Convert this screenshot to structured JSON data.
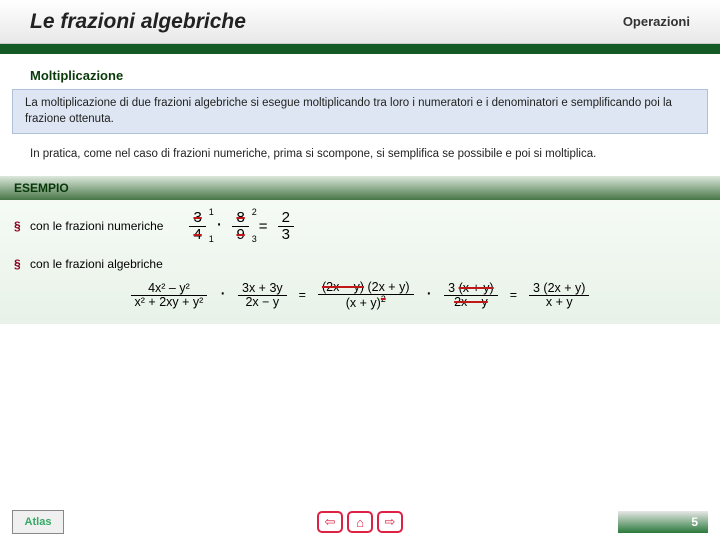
{
  "header": {
    "title": "Le frazioni algebriche",
    "subtitle": "Operazioni"
  },
  "section": {
    "heading": "Moltiplicazione"
  },
  "infobox": {
    "text": "La moltiplicazione di due frazioni algebriche si esegue moltiplicando tra loro i numeratori e i denominatori e semplificando poi la frazione ottenuta."
  },
  "para": {
    "text": "In pratica, come nel caso di frazioni numeriche, prima si scompone, si semplifica se possibile e poi si moltiplica."
  },
  "esempio": {
    "label": "ESEMPIO",
    "line1": {
      "bullet": "§",
      "text": "con le frazioni numeriche"
    },
    "numfrac": {
      "f1n": "3",
      "f1d": "4",
      "s1t": "1",
      "s1b": "1",
      "f2n": "8",
      "f2d": "9",
      "s2t": "2",
      "s2b": "3",
      "eq": "=",
      "rn": "2",
      "rd": "3",
      "dot": "·"
    },
    "line2": {
      "bullet": "§",
      "text": "con le frazioni algebriche"
    },
    "alg": {
      "a1n": "4x² – y²",
      "a1d": "x² + 2xy + y²",
      "a2n": "3x + 3y",
      "a2d": "2x − y",
      "b1n": "(2x − y) (2x + y)",
      "b1d": "(x + y)²",
      "b2n": "3 (x + y)",
      "b2d": "2x − y",
      "r1n": "3 (2x + y)",
      "r1d": "x + y",
      "dot": "·",
      "eq": "="
    }
  },
  "footer": {
    "logo": "Atlas",
    "page": "5"
  },
  "colors": {
    "header_grad": "#e8e8e8",
    "darkbar": "#145a24",
    "info_bg": "#dde6f2",
    "esempio_head": "#477647",
    "strike": "#c01818",
    "nav": "#d24"
  }
}
